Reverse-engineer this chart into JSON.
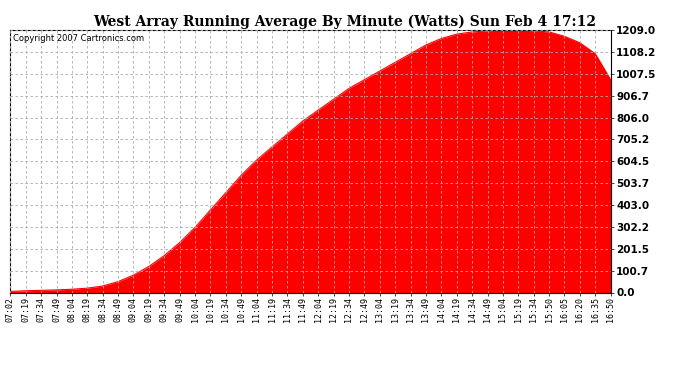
{
  "title": "West Array Running Average By Minute (Watts) Sun Feb 4 17:12",
  "copyright": "Copyright 2007 Cartronics.com",
  "y_ticks": [
    0.0,
    100.7,
    201.5,
    302.2,
    403.0,
    503.7,
    604.5,
    705.2,
    806.0,
    906.7,
    1007.5,
    1108.2,
    1209.0
  ],
  "y_max": 1209.0,
  "y_min": 0.0,
  "fill_color": "#FF0000",
  "line_color": "#CC0000",
  "bg_color": "#FFFFFF",
  "plot_bg_color": "#FFFFFF",
  "grid_color": "#AAAAAA",
  "border_color": "#000000",
  "x_labels": [
    "07:02",
    "07:19",
    "07:34",
    "07:49",
    "08:04",
    "08:19",
    "08:34",
    "08:49",
    "09:04",
    "09:19",
    "09:34",
    "09:49",
    "10:04",
    "10:19",
    "10:34",
    "10:49",
    "11:04",
    "11:19",
    "11:34",
    "11:49",
    "12:04",
    "12:19",
    "12:34",
    "12:49",
    "13:04",
    "13:19",
    "13:34",
    "13:49",
    "14:04",
    "14:19",
    "14:34",
    "14:49",
    "15:04",
    "15:19",
    "15:34",
    "15:50",
    "16:05",
    "16:20",
    "16:35",
    "16:50"
  ],
  "curve_y": [
    5,
    8,
    10,
    12,
    15,
    20,
    30,
    50,
    80,
    120,
    170,
    230,
    300,
    380,
    460,
    540,
    610,
    670,
    730,
    790,
    840,
    890,
    940,
    980,
    1020,
    1060,
    1100,
    1140,
    1170,
    1190,
    1200,
    1205,
    1209,
    1209,
    1205,
    1200,
    1180,
    1150,
    1100,
    980
  ]
}
